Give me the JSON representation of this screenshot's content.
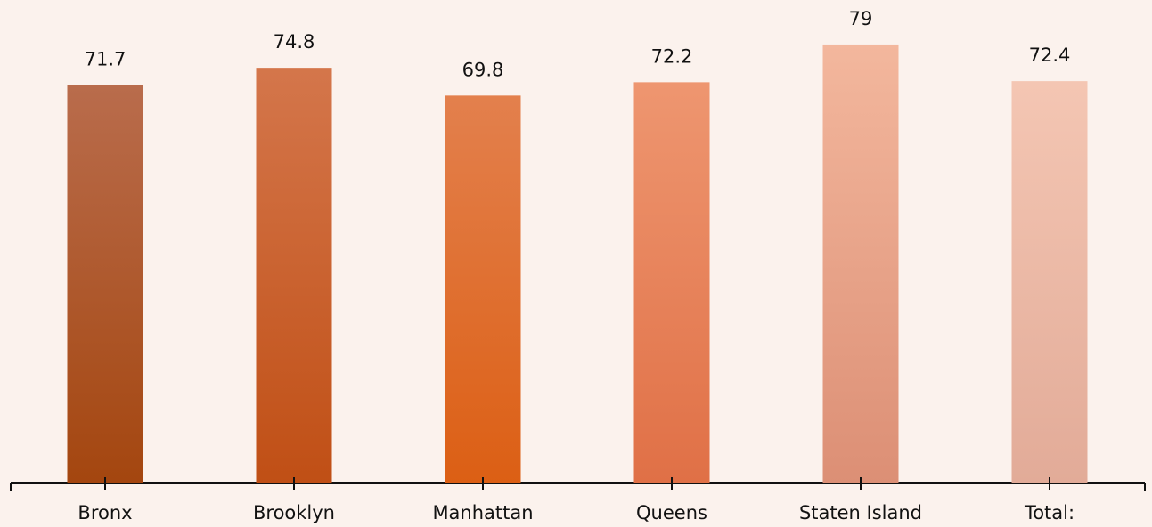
{
  "chart_data": {
    "type": "bar",
    "categories": [
      "Bronx",
      "Brooklyn",
      "Manhattan",
      "Queens",
      "Staten Island",
      "Total:"
    ],
    "values": [
      71.7,
      74.8,
      69.8,
      72.2,
      79,
      72.4
    ],
    "colors": [
      [
        "#b96c4c",
        "#a4460f"
      ],
      [
        "#d4764b",
        "#c04f15"
      ],
      [
        "#e3804d",
        "#dc5f14"
      ],
      [
        "#ee9670",
        "#e07046"
      ],
      [
        "#f3b79d",
        "#dc8f75"
      ],
      [
        "#f4c6b3",
        "#e2ab98"
      ]
    ],
    "ylim": [
      0,
      87
    ]
  }
}
